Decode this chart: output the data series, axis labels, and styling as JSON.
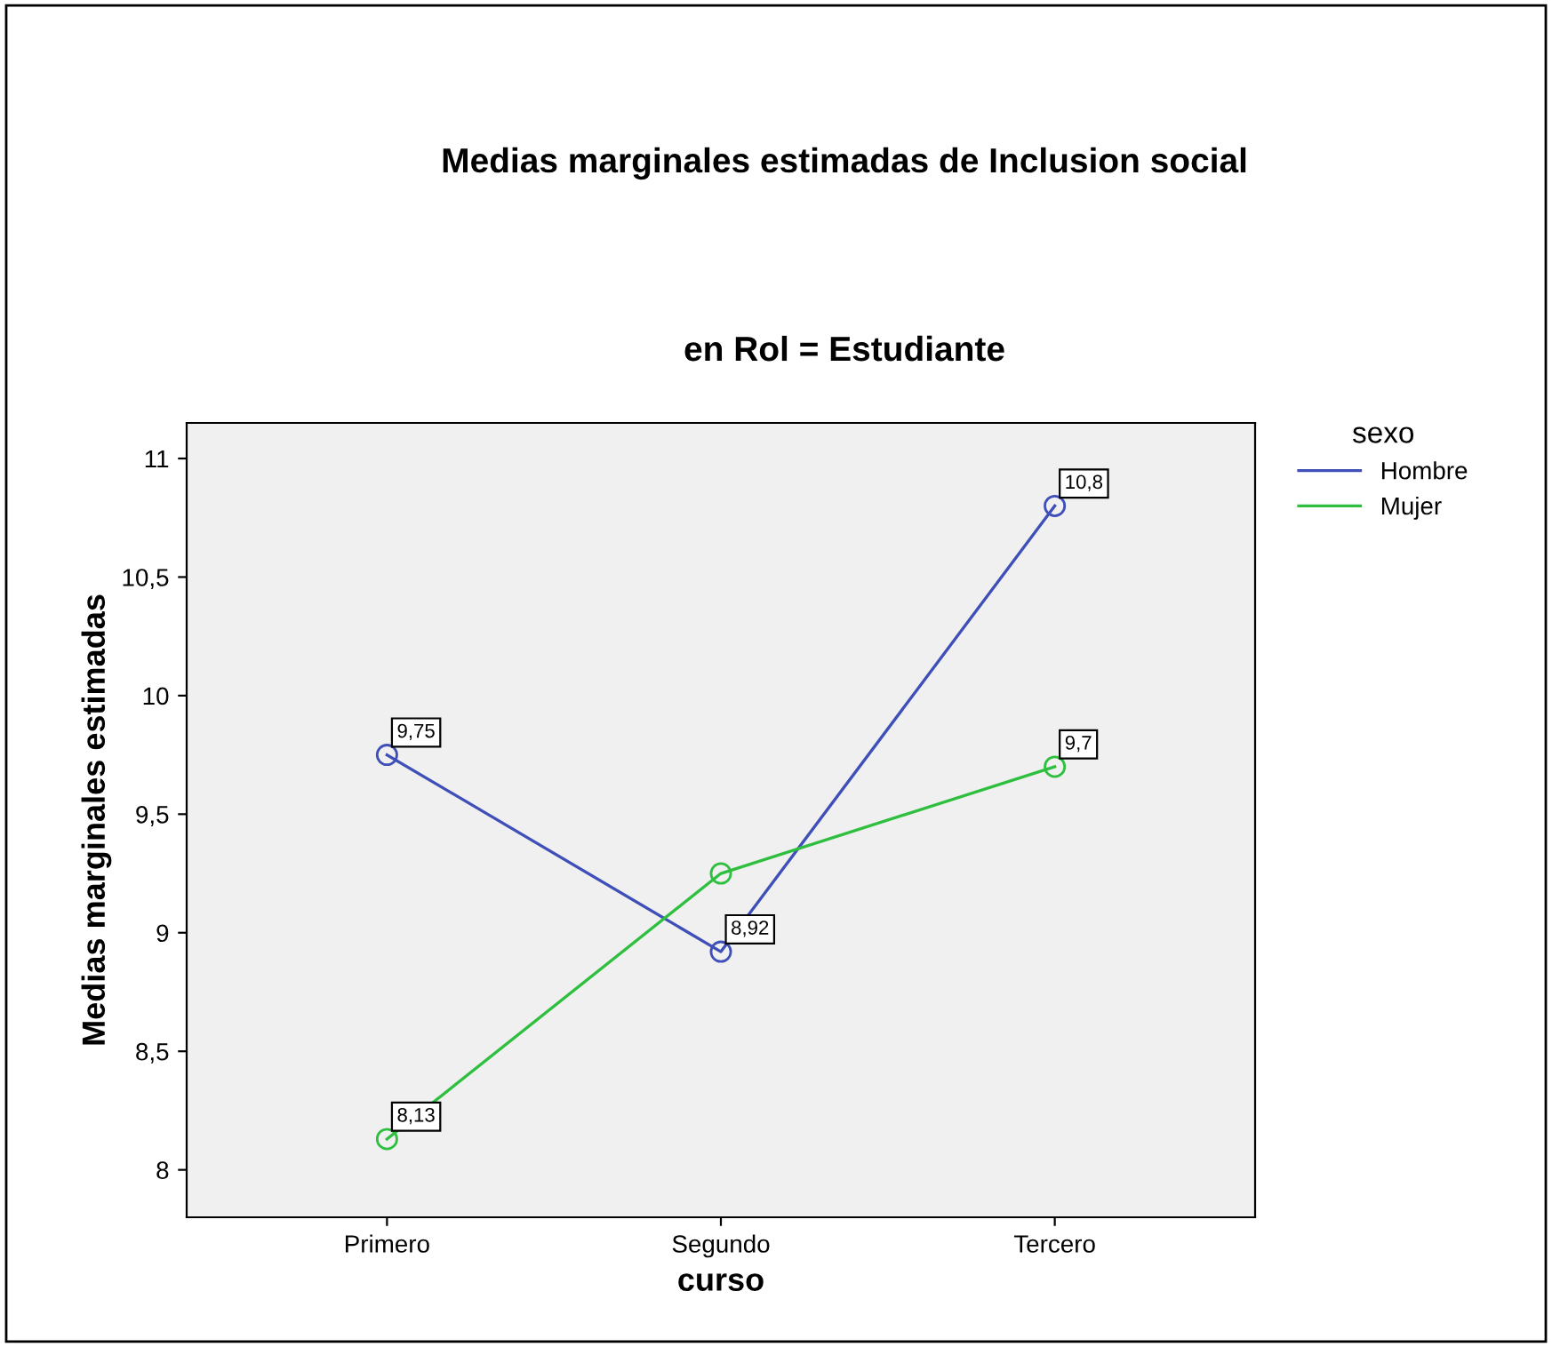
{
  "chart_data": {
    "type": "line",
    "title": "Medias marginales estimadas de Inclusion social",
    "subtitle": "en Rol = Estudiante",
    "xlabel": "curso",
    "ylabel": "Medias marginales estimadas",
    "legend_title": "sexo",
    "categories": [
      "Primero",
      "Segundo",
      "Tercero"
    ],
    "series": [
      {
        "name": "Hombre",
        "color": "#3f4fb8",
        "values": [
          9.75,
          8.92,
          10.8
        ],
        "value_labels": [
          "9,75",
          "8,92",
          "10,8"
        ]
      },
      {
        "name": "Mujer",
        "color": "#2fbf3f",
        "values": [
          8.13,
          9.25,
          9.7
        ],
        "value_labels": [
          "8,13",
          null,
          "9,7"
        ]
      }
    ],
    "ylim": [
      7.8,
      11.15
    ],
    "yticks": [
      {
        "value": 8,
        "label": "8"
      },
      {
        "value": 8.5,
        "label": "8,5"
      },
      {
        "value": 9,
        "label": "9"
      },
      {
        "value": 9.5,
        "label": "9,5"
      },
      {
        "value": 10,
        "label": "10"
      },
      {
        "value": 10.5,
        "label": "10,5"
      },
      {
        "value": 11,
        "label": "11"
      }
    ],
    "grid": false,
    "legend": "right",
    "marker": "circle",
    "line_style": "solid"
  }
}
